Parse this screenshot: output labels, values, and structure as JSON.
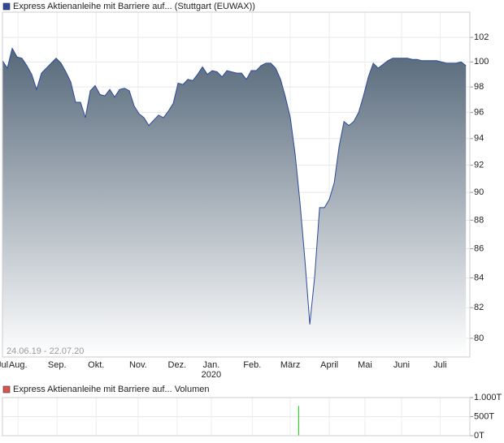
{
  "chart_data": [
    {
      "type": "area-line",
      "series": [
        {
          "name": "Express Aktienanleihe mit Barriere auf... (Stuttgart (EUWAX))",
          "color": "#2b4a9a",
          "fill_top": "#56687a",
          "fill_bottom": "#ffffff",
          "values": [
            100.1,
            99.5,
            101.1,
            100.4,
            100.3,
            99.7,
            99.0,
            97.8,
            99.1,
            99.5,
            99.9,
            100.3,
            99.9,
            99.2,
            98.4,
            96.8,
            96.8,
            95.6,
            97.7,
            98.1,
            97.4,
            97.3,
            97.8,
            97.2,
            97.8,
            97.9,
            97.7,
            96.5,
            95.9,
            95.6,
            95.0,
            95.4,
            95.8,
            95.6,
            96.1,
            96.7,
            98.3,
            98.2,
            98.6,
            98.5,
            99.0,
            99.6,
            99.0,
            99.3,
            99.2,
            98.8,
            99.3,
            99.2,
            99.1,
            99.1,
            98.6,
            99.3,
            99.3,
            99.7,
            99.9,
            99.9,
            99.5,
            98.6,
            97.2,
            95.6,
            92.8,
            89.2,
            85.2,
            80.9,
            84.1,
            88.9,
            88.9,
            89.5,
            90.7,
            93.4,
            95.3,
            95.0,
            95.3,
            96.0,
            97.3,
            98.8,
            99.9,
            99.5,
            99.8,
            100.1,
            100.3,
            100.3,
            100.3,
            100.3,
            100.2,
            100.2,
            100.1,
            100.1,
            100.1,
            100.1,
            100.0,
            99.9,
            99.9,
            99.9,
            100.0,
            99.7
          ]
        }
      ],
      "log_scale": true,
      "grid": true,
      "ylim": [
        78.8,
        104.1
      ],
      "yticks": [
        80,
        82,
        84,
        86,
        88,
        90,
        92,
        94,
        96,
        98,
        100,
        102
      ],
      "xlim": [
        0,
        95.8
      ],
      "xticks": [
        {
          "value": 0,
          "label": "Jul"
        },
        {
          "value": 3.2,
          "label": "Aug."
        },
        {
          "value": 11.2,
          "label": "Sep."
        },
        {
          "value": 19.2,
          "label": "Okt."
        },
        {
          "value": 27.8,
          "label": "Nov."
        },
        {
          "value": 35.8,
          "label": "Dez."
        },
        {
          "value": 42.8,
          "label": "Jan.",
          "sublabel": "2020"
        },
        {
          "value": 51.2,
          "label": "Feb."
        },
        {
          "value": 59,
          "label": "März"
        },
        {
          "value": 67,
          "label": "April"
        },
        {
          "value": 74.3,
          "label": "Mai"
        },
        {
          "value": 81.8,
          "label": "Juni"
        },
        {
          "value": 89.7,
          "label": "Juli"
        }
      ],
      "range_label": "24.06.19 - 22.07.20"
    },
    {
      "type": "volume",
      "series": [
        {
          "name": "Express Aktienanleihe mit Barriere auf... Volumen",
          "legend_color": "#d9534f",
          "color": "#33cc33",
          "x": [
            60.7
          ],
          "values": [
            780
          ]
        }
      ],
      "grid": true,
      "xlim": [
        0,
        95.8
      ],
      "ylim": [
        0,
        1000
      ],
      "yticks": [
        {
          "value": 0,
          "label": "0T"
        },
        {
          "value": 500,
          "label": "500T"
        },
        {
          "value": 1000,
          "label": "1.000T"
        }
      ]
    }
  ]
}
